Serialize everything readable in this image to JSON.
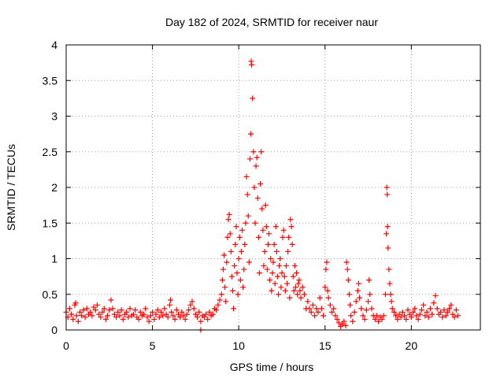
{
  "chart_data": {
    "type": "scatter",
    "title": "Day 182 of 2024, SRMTID for receiver naur",
    "xlabel": "GPS time / hours",
    "ylabel": "SRMTID / TECUs",
    "xlim": [
      0,
      24
    ],
    "ylim": [
      0,
      4
    ],
    "xticks": [
      0,
      5,
      10,
      15,
      20
    ],
    "xtick_labels": [
      "0",
      "5",
      "10",
      "15",
      "20"
    ],
    "yticks": [
      0,
      0.5,
      1,
      1.5,
      2,
      2.5,
      3,
      3.5,
      4
    ],
    "ytick_labels": [
      "0",
      "0.5",
      "1",
      "1.5",
      "2",
      "2.5",
      "3",
      "3.5",
      "4"
    ],
    "grid": true,
    "marker": "+",
    "series": [
      {
        "name": "SRMTID",
        "color": "#ff0000",
        "points": [
          [
            0.0,
            0.25
          ],
          [
            0.1,
            0.18
          ],
          [
            0.2,
            0.3
          ],
          [
            0.3,
            0.22
          ],
          [
            0.4,
            0.15
          ],
          [
            0.5,
            0.35
          ],
          [
            0.55,
            0.38
          ],
          [
            0.6,
            0.2
          ],
          [
            0.7,
            0.12
          ],
          [
            0.8,
            0.25
          ],
          [
            0.9,
            0.2
          ],
          [
            1.0,
            0.28
          ],
          [
            1.1,
            0.18
          ],
          [
            1.2,
            0.3
          ],
          [
            1.3,
            0.22
          ],
          [
            1.4,
            0.25
          ],
          [
            1.5,
            0.2
          ],
          [
            1.6,
            0.32
          ],
          [
            1.7,
            0.28
          ],
          [
            1.8,
            0.35
          ],
          [
            1.9,
            0.22
          ],
          [
            2.0,
            0.18
          ],
          [
            2.1,
            0.25
          ],
          [
            2.2,
            0.3
          ],
          [
            2.3,
            0.15
          ],
          [
            2.4,
            0.2
          ],
          [
            2.5,
            0.28
          ],
          [
            2.6,
            0.42
          ],
          [
            2.7,
            0.3
          ],
          [
            2.8,
            0.22
          ],
          [
            2.9,
            0.18
          ],
          [
            3.0,
            0.25
          ],
          [
            3.1,
            0.2
          ],
          [
            3.2,
            0.28
          ],
          [
            3.3,
            0.15
          ],
          [
            3.4,
            0.22
          ],
          [
            3.5,
            0.25
          ],
          [
            3.6,
            0.18
          ],
          [
            3.7,
            0.3
          ],
          [
            3.8,
            0.2
          ],
          [
            3.9,
            0.22
          ],
          [
            4.0,
            0.28
          ],
          [
            4.1,
            0.18
          ],
          [
            4.2,
            0.15
          ],
          [
            4.3,
            0.25
          ],
          [
            4.4,
            0.2
          ],
          [
            4.5,
            0.22
          ],
          [
            4.6,
            0.3
          ],
          [
            4.7,
            0.18
          ],
          [
            4.8,
            0.12
          ],
          [
            4.9,
            0.2
          ],
          [
            5.0,
            0.25
          ],
          [
            5.1,
            0.15
          ],
          [
            5.2,
            0.22
          ],
          [
            5.3,
            0.28
          ],
          [
            5.4,
            0.18
          ],
          [
            5.5,
            0.25
          ],
          [
            5.6,
            0.2
          ],
          [
            5.7,
            0.3
          ],
          [
            5.8,
            0.22
          ],
          [
            5.9,
            0.18
          ],
          [
            6.0,
            0.35
          ],
          [
            6.05,
            0.42
          ],
          [
            6.1,
            0.25
          ],
          [
            6.2,
            0.2
          ],
          [
            6.3,
            0.15
          ],
          [
            6.4,
            0.28
          ],
          [
            6.5,
            0.22
          ],
          [
            6.6,
            0.18
          ],
          [
            6.7,
            0.25
          ],
          [
            6.8,
            0.2
          ],
          [
            6.9,
            0.15
          ],
          [
            7.0,
            0.22
          ],
          [
            7.1,
            0.28
          ],
          [
            7.2,
            0.35
          ],
          [
            7.3,
            0.4
          ],
          [
            7.4,
            0.3
          ],
          [
            7.5,
            0.22
          ],
          [
            7.6,
            0.18
          ],
          [
            7.7,
            0.25
          ],
          [
            7.8,
            0.12
          ],
          [
            7.8,
            0.0
          ],
          [
            7.9,
            0.2
          ],
          [
            8.0,
            0.18
          ],
          [
            8.1,
            0.22
          ],
          [
            8.2,
            0.15
          ],
          [
            8.3,
            0.25
          ],
          [
            8.4,
            0.2
          ],
          [
            8.5,
            0.22
          ],
          [
            8.6,
            0.3
          ],
          [
            8.7,
            0.28
          ],
          [
            8.8,
            0.35
          ],
          [
            8.9,
            0.42
          ],
          [
            9.0,
            0.5
          ],
          [
            9.05,
            0.7
          ],
          [
            9.1,
            0.85
          ],
          [
            9.15,
            1.05
          ],
          [
            9.2,
            0.6
          ],
          [
            9.25,
            0.4
          ],
          [
            9.3,
            0.95
          ],
          [
            9.35,
            1.3
          ],
          [
            9.4,
            1.55
          ],
          [
            9.45,
            1.62
          ],
          [
            9.5,
            1.35
          ],
          [
            9.55,
            1.1
          ],
          [
            9.6,
            0.75
          ],
          [
            9.65,
            0.55
          ],
          [
            9.7,
            0.3
          ],
          [
            9.75,
            0.9
          ],
          [
            9.8,
            1.2
          ],
          [
            9.85,
            1.45
          ],
          [
            9.9,
            0.8
          ],
          [
            9.95,
            0.5
          ],
          [
            10.0,
            1.0
          ],
          [
            10.05,
            1.3
          ],
          [
            10.1,
            0.7
          ],
          [
            10.15,
            1.1
          ],
          [
            10.2,
            1.4
          ],
          [
            10.25,
            0.6
          ],
          [
            10.3,
            0.85
          ],
          [
            10.35,
            1.2
          ],
          [
            10.4,
            1.5
          ],
          [
            10.45,
            2.15
          ],
          [
            10.5,
            1.9
          ],
          [
            10.55,
            1.6
          ],
          [
            10.6,
            0.95
          ],
          [
            10.65,
            2.4
          ],
          [
            10.7,
            2.75
          ],
          [
            10.72,
            3.77
          ],
          [
            10.75,
            3.72
          ],
          [
            10.8,
            3.25
          ],
          [
            10.85,
            2.5
          ],
          [
            10.9,
            2.0
          ],
          [
            10.95,
            1.5
          ],
          [
            11.0,
            2.3
          ],
          [
            11.05,
            2.42
          ],
          [
            11.1,
            1.85
          ],
          [
            11.15,
            1.3
          ],
          [
            11.2,
            0.8
          ],
          [
            11.25,
            2.05
          ],
          [
            11.3,
            2.5
          ],
          [
            11.35,
            1.7
          ],
          [
            11.4,
            1.4
          ],
          [
            11.45,
            0.9
          ],
          [
            11.5,
            1.1
          ],
          [
            11.55,
            1.75
          ],
          [
            11.6,
            1.45
          ],
          [
            11.65,
            0.85
          ],
          [
            11.7,
            1.2
          ],
          [
            11.75,
            1.35
          ],
          [
            11.8,
            0.7
          ],
          [
            11.85,
            1.0
          ],
          [
            11.9,
            0.55
          ],
          [
            11.95,
            0.8
          ],
          [
            12.0,
            0.95
          ],
          [
            12.05,
            1.2
          ],
          [
            12.1,
            0.65
          ],
          [
            12.15,
            1.45
          ],
          [
            12.2,
            1.1
          ],
          [
            12.25,
            0.75
          ],
          [
            12.3,
            0.5
          ],
          [
            12.35,
            0.9
          ],
          [
            12.4,
            1.0
          ],
          [
            12.45,
            0.6
          ],
          [
            12.5,
            0.8
          ],
          [
            12.55,
            1.3
          ],
          [
            12.6,
            1.4
          ],
          [
            12.65,
            0.75
          ],
          [
            12.7,
            0.55
          ],
          [
            12.75,
            0.9
          ],
          [
            12.8,
            0.65
          ],
          [
            12.85,
            1.1
          ],
          [
            12.9,
            1.3
          ],
          [
            12.95,
            0.45
          ],
          [
            13.0,
            1.55
          ],
          [
            13.05,
            1.45
          ],
          [
            13.1,
            1.2
          ],
          [
            13.15,
            0.75
          ],
          [
            13.2,
            0.55
          ],
          [
            13.25,
            0.9
          ],
          [
            13.3,
            0.6
          ],
          [
            13.35,
            0.8
          ],
          [
            13.4,
            0.5
          ],
          [
            13.45,
            0.65
          ],
          [
            13.5,
            0.7
          ],
          [
            13.55,
            0.55
          ],
          [
            13.6,
            0.45
          ],
          [
            13.7,
            0.6
          ],
          [
            13.8,
            0.5
          ],
          [
            13.9,
            0.3
          ],
          [
            14.0,
            0.4
          ],
          [
            14.1,
            0.3
          ],
          [
            14.2,
            0.25
          ],
          [
            14.3,
            0.35
          ],
          [
            14.4,
            0.2
          ],
          [
            14.5,
            0.3
          ],
          [
            14.6,
            0.25
          ],
          [
            14.7,
            0.45
          ],
          [
            14.8,
            0.3
          ],
          [
            14.9,
            0.2
          ],
          [
            15.0,
            0.6
          ],
          [
            15.05,
            0.85
          ],
          [
            15.1,
            0.95
          ],
          [
            15.15,
            0.55
          ],
          [
            15.2,
            0.45
          ],
          [
            15.3,
            0.35
          ],
          [
            15.4,
            0.25
          ],
          [
            15.5,
            0.3
          ],
          [
            15.6,
            0.2
          ],
          [
            15.7,
            0.15
          ],
          [
            15.8,
            0.1
          ],
          [
            15.9,
            0.05
          ],
          [
            16.0,
            0.08
          ],
          [
            16.1,
            0.12
          ],
          [
            16.2,
            0.06
          ],
          [
            16.25,
            0.95
          ],
          [
            16.3,
            0.85
          ],
          [
            16.35,
            0.7
          ],
          [
            16.4,
            0.5
          ],
          [
            16.45,
            0.35
          ],
          [
            16.5,
            0.2
          ],
          [
            16.6,
            0.12
          ],
          [
            16.7,
            0.25
          ],
          [
            16.8,
            0.4
          ],
          [
            16.9,
            0.55
          ],
          [
            16.95,
            0.65
          ],
          [
            17.0,
            0.45
          ],
          [
            17.1,
            0.3
          ],
          [
            17.2,
            0.2
          ],
          [
            17.3,
            0.15
          ],
          [
            17.4,
            0.28
          ],
          [
            17.5,
            0.4
          ],
          [
            17.55,
            0.7
          ],
          [
            17.6,
            0.5
          ],
          [
            17.7,
            0.3
          ],
          [
            17.8,
            0.2
          ],
          [
            17.9,
            0.15
          ],
          [
            18.0,
            0.2
          ],
          [
            18.1,
            0.12
          ],
          [
            18.2,
            0.18
          ],
          [
            18.3,
            0.15
          ],
          [
            18.4,
            0.2
          ],
          [
            18.5,
            0.5
          ],
          [
            18.55,
            1.35
          ],
          [
            18.58,
            2.0
          ],
          [
            18.6,
            1.9
          ],
          [
            18.62,
            1.45
          ],
          [
            18.65,
            1.15
          ],
          [
            18.7,
            0.85
          ],
          [
            18.75,
            0.65
          ],
          [
            18.8,
            0.5
          ],
          [
            18.85,
            0.4
          ],
          [
            18.9,
            0.3
          ],
          [
            19.0,
            0.25
          ],
          [
            19.1,
            0.2
          ],
          [
            19.2,
            0.15
          ],
          [
            19.3,
            0.22
          ],
          [
            19.4,
            0.18
          ],
          [
            19.5,
            0.25
          ],
          [
            19.6,
            0.2
          ],
          [
            19.7,
            0.15
          ],
          [
            19.8,
            0.28
          ],
          [
            19.9,
            0.22
          ],
          [
            20.0,
            0.18
          ],
          [
            20.1,
            0.25
          ],
          [
            20.2,
            0.3
          ],
          [
            20.3,
            0.2
          ],
          [
            20.4,
            0.15
          ],
          [
            20.5,
            0.22
          ],
          [
            20.6,
            0.28
          ],
          [
            20.7,
            0.35
          ],
          [
            20.8,
            0.2
          ],
          [
            20.9,
            0.25
          ],
          [
            21.0,
            0.18
          ],
          [
            21.1,
            0.3
          ],
          [
            21.2,
            0.22
          ],
          [
            21.3,
            0.38
          ],
          [
            21.4,
            0.48
          ],
          [
            21.5,
            0.3
          ],
          [
            21.6,
            0.22
          ],
          [
            21.7,
            0.25
          ],
          [
            21.8,
            0.18
          ],
          [
            21.9,
            0.28
          ],
          [
            22.0,
            0.2
          ],
          [
            22.1,
            0.25
          ],
          [
            22.2,
            0.3
          ],
          [
            22.3,
            0.35
          ],
          [
            22.4,
            0.22
          ],
          [
            22.5,
            0.18
          ],
          [
            22.6,
            0.28
          ],
          [
            22.7,
            0.2
          ]
        ]
      }
    ]
  }
}
